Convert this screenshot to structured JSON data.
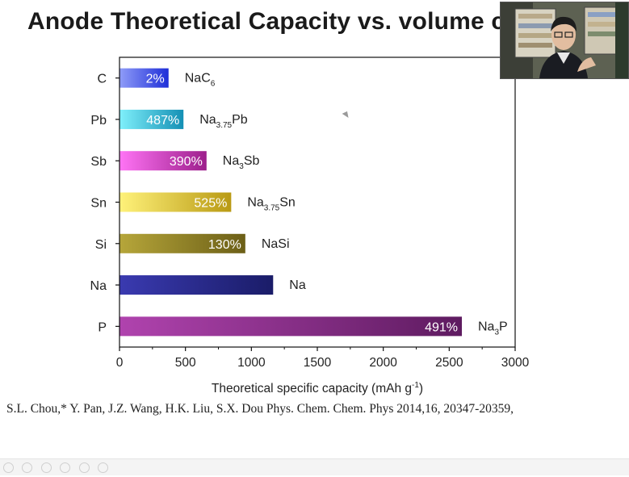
{
  "title": "Anode Theoretical Capacity vs. volume c",
  "citation": "S.L. Chou,* Y. Pan, J.Z. Wang, H.K. Liu, S.X. Dou Phys. Chem. Chem. Phys 2014,16, 20347-20359,",
  "webcam_icon": "presenter-webcam-icon",
  "chart_data": {
    "type": "bar",
    "orientation": "horizontal",
    "categories": [
      "C",
      "Pb",
      "Sb",
      "Sn",
      "Si",
      "Na",
      "P"
    ],
    "values": [
      372,
      485,
      660,
      847,
      954,
      1165,
      2596
    ],
    "volume_expansion_labels": [
      "2%",
      "487%",
      "390%",
      "525%",
      "130%",
      "",
      "491%"
    ],
    "phase_labels": [
      {
        "main": "NaC",
        "sub": "6",
        "tail": ""
      },
      {
        "main": "Na",
        "sub": "3.75",
        "tail": "Pb"
      },
      {
        "main": "Na",
        "sub": "3",
        "tail": "Sb"
      },
      {
        "main": "Na",
        "sub": "3.75",
        "tail": "Sn"
      },
      {
        "main": "NaSi",
        "sub": "",
        "tail": ""
      },
      {
        "main": "Na",
        "sub": "",
        "tail": ""
      },
      {
        "main": "Na",
        "sub": "3",
        "tail": "P"
      }
    ],
    "bar_colors": [
      [
        "#8f9cf8",
        "#1f2fd8"
      ],
      [
        "#7ff0fb",
        "#1590b5"
      ],
      [
        "#ff74f5",
        "#9d1f8c"
      ],
      [
        "#fff27a",
        "#b99a14"
      ],
      [
        "#b6a63a",
        "#6c5f17"
      ],
      [
        "#3a3ab0",
        "#1a1c68"
      ],
      [
        "#b043ae",
        "#5e1b60"
      ]
    ],
    "xlim": [
      0,
      3000
    ],
    "xticks": [
      0,
      500,
      1000,
      1500,
      2000,
      2500,
      3000
    ],
    "xlabel": "Theoretical specific capacity (mAh g",
    "xlabel_sup": "-1",
    "xlabel_tail": ")",
    "ylabel": "",
    "grid": false
  }
}
